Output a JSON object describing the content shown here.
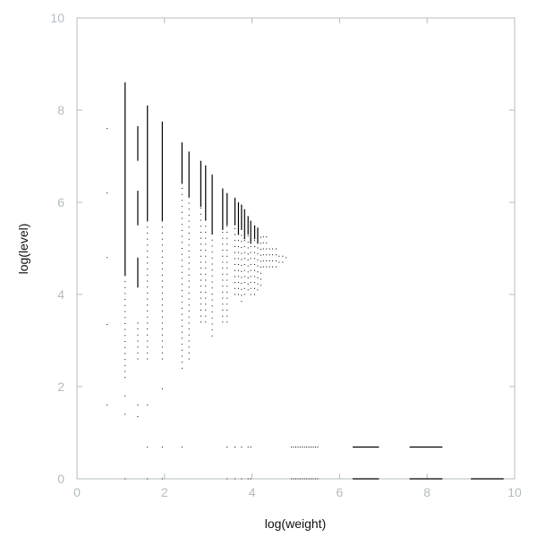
{
  "chart_data": {
    "type": "scatter",
    "title": "",
    "xlabel": "log(weight)",
    "ylabel": "log(level)",
    "xlim": [
      0,
      10
    ],
    "ylim": [
      0,
      10
    ],
    "xticks": [
      "0",
      "2",
      "4",
      "6",
      "8",
      "10"
    ],
    "yticks": [
      "0",
      "2",
      "4",
      "6",
      "8",
      "10"
    ],
    "grid": false,
    "colors": {
      "points": "#000000",
      "axes": "#b4bcc0"
    },
    "columns": [
      {
        "x": 0.69,
        "points": [
          7.6,
          6.2,
          4.8,
          3.35,
          1.6
        ]
      },
      {
        "x": 1.1,
        "lines": [
          [
            4.4,
            8.6
          ]
        ],
        "dots": [
          2.2,
          4.4
        ],
        "points": [
          1.8,
          1.4,
          0
        ]
      },
      {
        "x": 1.39,
        "lines": [
          [
            6.9,
            7.65
          ],
          [
            5.5,
            6.25
          ],
          [
            4.15,
            4.8
          ]
        ],
        "dots": [
          2.6,
          3.4
        ],
        "points": [
          1.6,
          1.35
        ]
      },
      {
        "x": 1.61,
        "lines": [
          [
            5.6,
            8.1
          ]
        ],
        "dots": [
          2.6,
          5.6
        ],
        "points": [
          1.6,
          0.69,
          0
        ]
      },
      {
        "x": 1.95,
        "lines": [
          [
            5.6,
            7.75
          ]
        ],
        "dots": [
          2.6,
          5.6
        ],
        "points": [
          1.95,
          0.69,
          0
        ]
      },
      {
        "x": 2.4,
        "lines": [
          [
            6.4,
            7.3
          ]
        ],
        "dots": [
          2.4,
          6.4
        ],
        "points": [
          0.69
        ]
      },
      {
        "x": 2.56,
        "lines": [
          [
            6.1,
            7.1
          ]
        ],
        "dots": [
          2.6,
          6.1
        ]
      },
      {
        "x": 2.83,
        "lines": [
          [
            5.9,
            6.9
          ]
        ],
        "dots": [
          3.4,
          5.9
        ]
      },
      {
        "x": 2.94,
        "lines": [
          [
            5.6,
            6.8
          ]
        ],
        "dots": [
          3.4,
          5.6
        ]
      },
      {
        "x": 3.09,
        "lines": [
          [
            5.3,
            6.6
          ]
        ],
        "dots": [
          3.1,
          5.3
        ]
      },
      {
        "x": 3.33,
        "lines": [
          [
            5.4,
            6.3
          ]
        ],
        "dots": [
          3.4,
          5.4
        ]
      },
      {
        "x": 3.43,
        "lines": [
          [
            5.5,
            6.2
          ]
        ],
        "dots": [
          3.4,
          5.5
        ],
        "points": [
          0.69,
          0
        ]
      },
      {
        "x": 3.61,
        "lines": [
          [
            5.5,
            6.1
          ]
        ],
        "dots": [
          4.0,
          5.5
        ],
        "points": [
          0.69,
          0
        ]
      },
      {
        "x": 3.69,
        "lines": [
          [
            5.3,
            6.0
          ]
        ],
        "dots": [
          4.0,
          5.3
        ]
      },
      {
        "x": 3.76,
        "lines": [
          [
            5.4,
            5.95
          ]
        ],
        "dots": [
          3.85,
          5.4
        ],
        "points": [
          0.69,
          0
        ]
      },
      {
        "x": 3.83,
        "lines": [
          [
            5.2,
            5.85
          ]
        ],
        "dots": [
          4.0,
          5.2
        ]
      },
      {
        "x": 3.91,
        "lines": [
          [
            5.3,
            5.7
          ]
        ],
        "dots": [
          4.1,
          5.3
        ],
        "points": [
          0.69,
          0
        ]
      },
      {
        "x": 3.97,
        "lines": [
          [
            5.1,
            5.6
          ]
        ],
        "dots": [
          4.0,
          5.1
        ],
        "points": [
          0.69,
          0
        ]
      },
      {
        "x": 4.06,
        "lines": [
          [
            5.2,
            5.5
          ]
        ],
        "dots": [
          4.0,
          5.2
        ]
      },
      {
        "x": 4.13,
        "lines": [
          [
            5.1,
            5.45
          ]
        ],
        "dots": [
          4.1,
          5.1
        ]
      },
      {
        "x": 4.2,
        "dots": [
          4.2,
          5.35
        ]
      },
      {
        "x": 4.26,
        "dots": [
          4.6,
          5.3
        ]
      },
      {
        "x": 4.33,
        "dots": [
          4.6,
          5.25
        ]
      },
      {
        "x": 4.4,
        "dots": [
          4.6,
          5.1
        ]
      },
      {
        "x": 4.47,
        "dots": [
          4.6,
          5.1
        ]
      },
      {
        "x": 4.55,
        "dots": [
          4.6,
          5.0
        ]
      },
      {
        "x": 4.62,
        "dots": [
          4.7,
          4.95
        ]
      },
      {
        "x": 4.7,
        "dots": [
          4.7,
          4.9
        ]
      },
      {
        "x": 4.78,
        "dots": [
          4.8,
          4.85
        ]
      }
    ],
    "horizontal_segments": [
      {
        "y": 0.69,
        "x": [
          6.3,
          6.9
        ]
      },
      {
        "y": 0.69,
        "x": [
          7.6,
          8.35
        ]
      },
      {
        "y": 0,
        "x": [
          6.3,
          6.9
        ]
      },
      {
        "y": 0,
        "x": [
          7.6,
          8.35
        ]
      },
      {
        "y": 0,
        "x": [
          9.0,
          9.75
        ]
      }
    ],
    "dotted_segments": [
      {
        "y": 0.69,
        "x": [
          4.9,
          5.5
        ]
      },
      {
        "y": 0,
        "x": [
          4.9,
          5.5
        ]
      }
    ]
  }
}
